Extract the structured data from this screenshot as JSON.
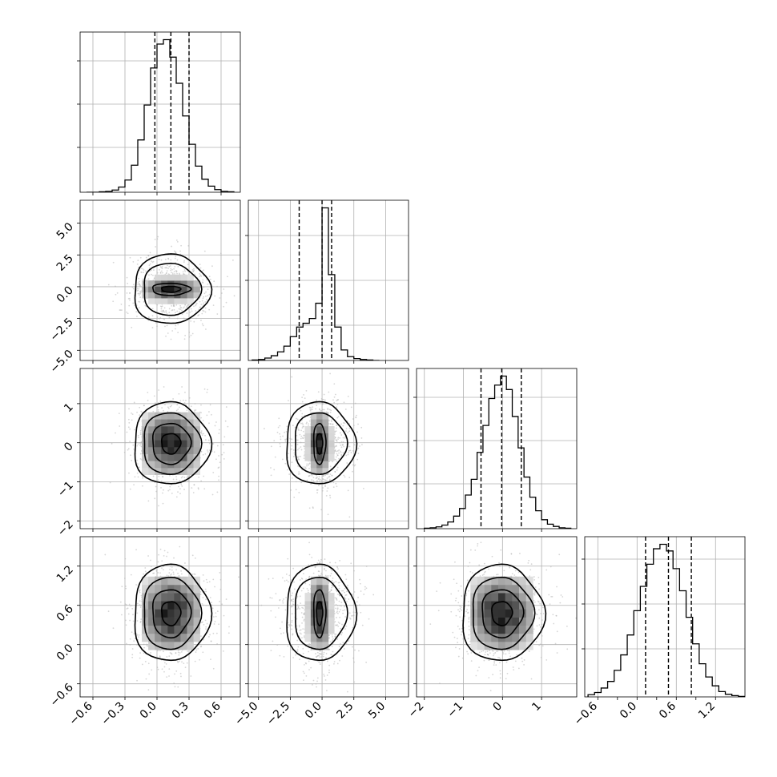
{
  "chart_data": {
    "type": "corner",
    "variables": [
      {
        "lim": [
          -0.72,
          0.78
        ],
        "ticks": [
          -0.6,
          -0.3,
          0.0,
          0.3,
          0.6
        ],
        "tick_labels": [
          "−0.6",
          "−0.3",
          "0.0",
          "0.3",
          "0.6"
        ],
        "mean": 0.13,
        "sd": 0.17,
        "quantiles": [
          -0.02,
          0.13,
          0.3
        ],
        "hist": {
          "edges": [
            -0.66,
            -0.6,
            -0.54,
            -0.48,
            -0.42,
            -0.36,
            -0.3,
            -0.24,
            -0.18,
            -0.12,
            -0.06,
            0.0,
            0.06,
            0.12,
            0.18,
            0.24,
            0.3,
            0.36,
            0.42,
            0.48,
            0.54,
            0.6,
            0.66,
            0.72
          ],
          "counts": [
            0,
            0,
            1,
            2,
            5,
            12,
            28,
            62,
            120,
            200,
            285,
            340,
            350,
            310,
            250,
            175,
            110,
            60,
            30,
            14,
            6,
            2,
            1
          ]
        },
        "hist_ticks_fraction": [
          0.28,
          0.55,
          0.82
        ]
      },
      {
        "lim": [
          -5.8,
          6.8
        ],
        "ticks": [
          -5.0,
          -2.5,
          0.0,
          2.5,
          5.0
        ],
        "tick_labels": [
          "−5.0",
          "−2.5",
          "0.0",
          "2.5",
          "5.0"
        ],
        "mean": -0.2,
        "sd": 1.3,
        "quantiles": [
          -1.8,
          0.0,
          0.75
        ],
        "hist": {
          "edges": [
            -5.5,
            -5.0,
            -4.5,
            -4.0,
            -3.5,
            -3.0,
            -2.5,
            -2.0,
            -1.5,
            -1.0,
            -0.5,
            0.0,
            0.5,
            1.0,
            1.5,
            2.0,
            2.5,
            3.0,
            3.5,
            4.0,
            4.5
          ],
          "counts": [
            1,
            2,
            5,
            10,
            18,
            30,
            50,
            70,
            78,
            88,
            120,
            320,
            180,
            70,
            22,
            8,
            4,
            2,
            1,
            0
          ]
        },
        "hist_ticks_fraction": [
          0.22,
          0.5,
          0.78
        ]
      },
      {
        "lim": [
          -2.2,
          1.9
        ],
        "ticks": [
          -2,
          -1,
          0,
          1
        ],
        "tick_labels": [
          "−2",
          "−1",
          "0",
          "1"
        ],
        "mean": -0.02,
        "sd": 0.5,
        "quantiles": [
          -0.55,
          -0.02,
          0.48
        ],
        "hist": {
          "edges": [
            -2.0,
            -1.85,
            -1.7,
            -1.55,
            -1.4,
            -1.25,
            -1.1,
            -0.95,
            -0.8,
            -0.65,
            -0.5,
            -0.35,
            -0.2,
            -0.05,
            0.1,
            0.25,
            0.4,
            0.55,
            0.7,
            0.85,
            1.0,
            1.15,
            1.3,
            1.45,
            1.6,
            1.75
          ],
          "counts": [
            1,
            2,
            4,
            8,
            15,
            28,
            45,
            75,
            110,
            170,
            230,
            290,
            320,
            340,
            310,
            250,
            180,
            115,
            70,
            40,
            20,
            10,
            5,
            2,
            1
          ]
        },
        "hist_ticks_fraction": [
          0.28,
          0.55,
          0.82
        ]
      },
      {
        "lim": [
          -0.8,
          1.65
        ],
        "ticks": [
          -0.6,
          0.0,
          0.6,
          1.2
        ],
        "tick_labels": [
          "−0.6",
          "0.0",
          "0.6",
          "1.2"
        ],
        "extra_ticks": [
          -0.3,
          0.3,
          0.9
        ],
        "mean": 0.48,
        "sd": 0.35,
        "quantiles": [
          0.13,
          0.48,
          0.83
        ],
        "hist": {
          "edges": [
            -0.75,
            -0.65,
            -0.55,
            -0.45,
            -0.35,
            -0.25,
            -0.15,
            -0.05,
            0.05,
            0.15,
            0.25,
            0.35,
            0.45,
            0.55,
            0.65,
            0.75,
            0.85,
            0.95,
            1.05,
            1.15,
            1.25,
            1.35,
            1.45,
            1.55,
            1.65
          ],
          "counts": [
            5,
            10,
            20,
            35,
            60,
            95,
            140,
            195,
            250,
            300,
            335,
            345,
            330,
            290,
            240,
            180,
            120,
            75,
            45,
            25,
            12,
            6,
            3,
            1
          ]
        },
        "hist_ticks_fraction": [
          0.3,
          0.58,
          0.86
        ]
      }
    ],
    "pairs": [
      {
        "row": 1,
        "col": 0,
        "mode": "flat"
      },
      {
        "row": 2,
        "col": 0,
        "mode": "round"
      },
      {
        "row": 2,
        "col": 1,
        "mode": "tall"
      },
      {
        "row": 3,
        "col": 0,
        "mode": "round"
      },
      {
        "row": 3,
        "col": 1,
        "mode": "tall"
      },
      {
        "row": 3,
        "col": 2,
        "mode": "round"
      }
    ],
    "grid": true,
    "contour_levels_sigma": [
      0.5,
      1.0,
      1.5,
      2.0
    ],
    "colors": {
      "line": "#000000",
      "grid": "#b0b0b0",
      "points": "#b5b5b5"
    }
  }
}
